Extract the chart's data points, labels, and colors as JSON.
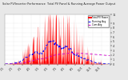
{
  "title": "Solar PV/Inverter Performance  Total PV Panel & Running Average Power Output",
  "bg_color": "#e8e8e8",
  "plot_bg": "#ffffff",
  "bar_color": "#ff0000",
  "avg_color": "#0000ff",
  "avg2_color": "#cc00cc",
  "n_points": 500,
  "seed": 17,
  "peak_kw": 11.0,
  "ylim_max": 11.0,
  "grid_color": "#aaaaaa",
  "legend_items": [
    "Total PV Power",
    "Running Avg",
    "Cum Avg"
  ],
  "ytick_labels": [
    "11",
    "9",
    "8",
    "7",
    "6",
    "5",
    "4",
    "3",
    "2",
    "1",
    "0"
  ],
  "ytick_vals": [
    11,
    9,
    8,
    7,
    6,
    5,
    4,
    3,
    2,
    1,
    0
  ]
}
